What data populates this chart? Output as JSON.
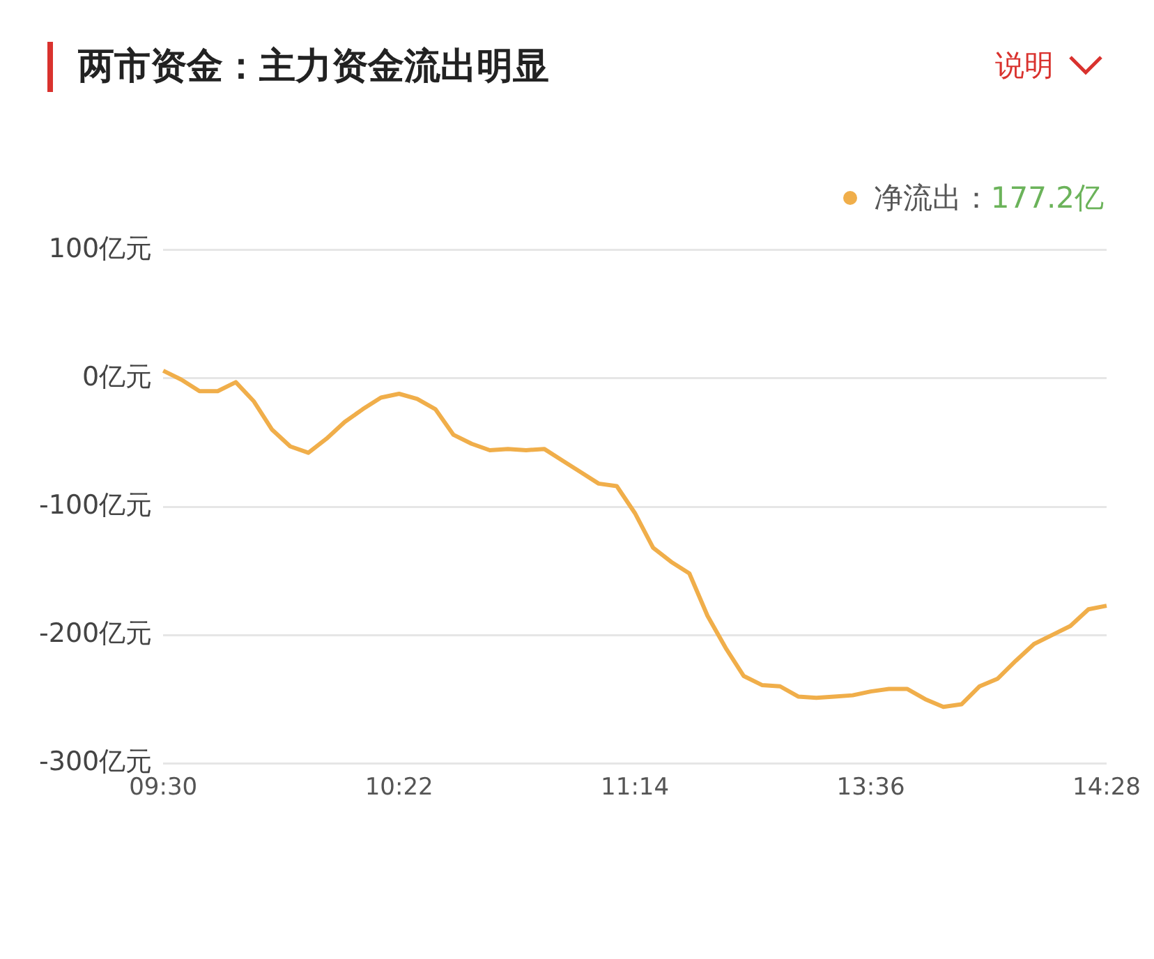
{
  "chart_data": {
    "type": "line",
    "title": "两市资金：主力资金流出明显",
    "annotations": [
      "说明",
      "177.2亿"
    ],
    "categories": [
      "09:30",
      null,
      null,
      null,
      null,
      null,
      null,
      null,
      null,
      null,
      null,
      null,
      null,
      "10:22",
      null,
      null,
      null,
      null,
      null,
      null,
      null,
      null,
      null,
      null,
      null,
      null,
      "11:14",
      null,
      null,
      null,
      null,
      null,
      null,
      null,
      null,
      null,
      null,
      null,
      null,
      "13:36",
      null,
      null,
      null,
      null,
      null,
      null,
      null,
      null,
      null,
      null,
      null,
      null,
      "14:28"
    ],
    "series": [
      {
        "name": "净流出：",
        "color": "#f0ae4a",
        "values": [
          6,
          -1,
          -10,
          -10,
          -3,
          -18,
          -40,
          -53,
          -58,
          -47,
          -34,
          -24,
          -15,
          -12,
          -16,
          -24,
          -44,
          -51,
          -56,
          -55,
          -56,
          -55,
          -64,
          -73,
          -82,
          -84,
          -105,
          -132,
          -143,
          -152,
          -185,
          -210,
          -232,
          -239,
          -240,
          -248,
          -249,
          -248,
          -247,
          -244,
          -242,
          -242,
          -250,
          -256,
          -254,
          -240,
          -234,
          -220,
          -207,
          -200,
          -193,
          -180,
          -177.2
        ]
      }
    ],
    "ylim": [
      -300,
      100
    ],
    "yticks": [
      {
        "value": 100,
        "label": "100亿元"
      },
      {
        "value": 0,
        "label": "0亿元"
      },
      {
        "value": -100,
        "label": "-100亿元"
      },
      {
        "value": -200,
        "label": "-200亿元"
      },
      {
        "value": -300,
        "label": "-300亿元"
      }
    ],
    "grid": "y",
    "legend": "top right",
    "marker": "none",
    "line_style": "solid"
  }
}
